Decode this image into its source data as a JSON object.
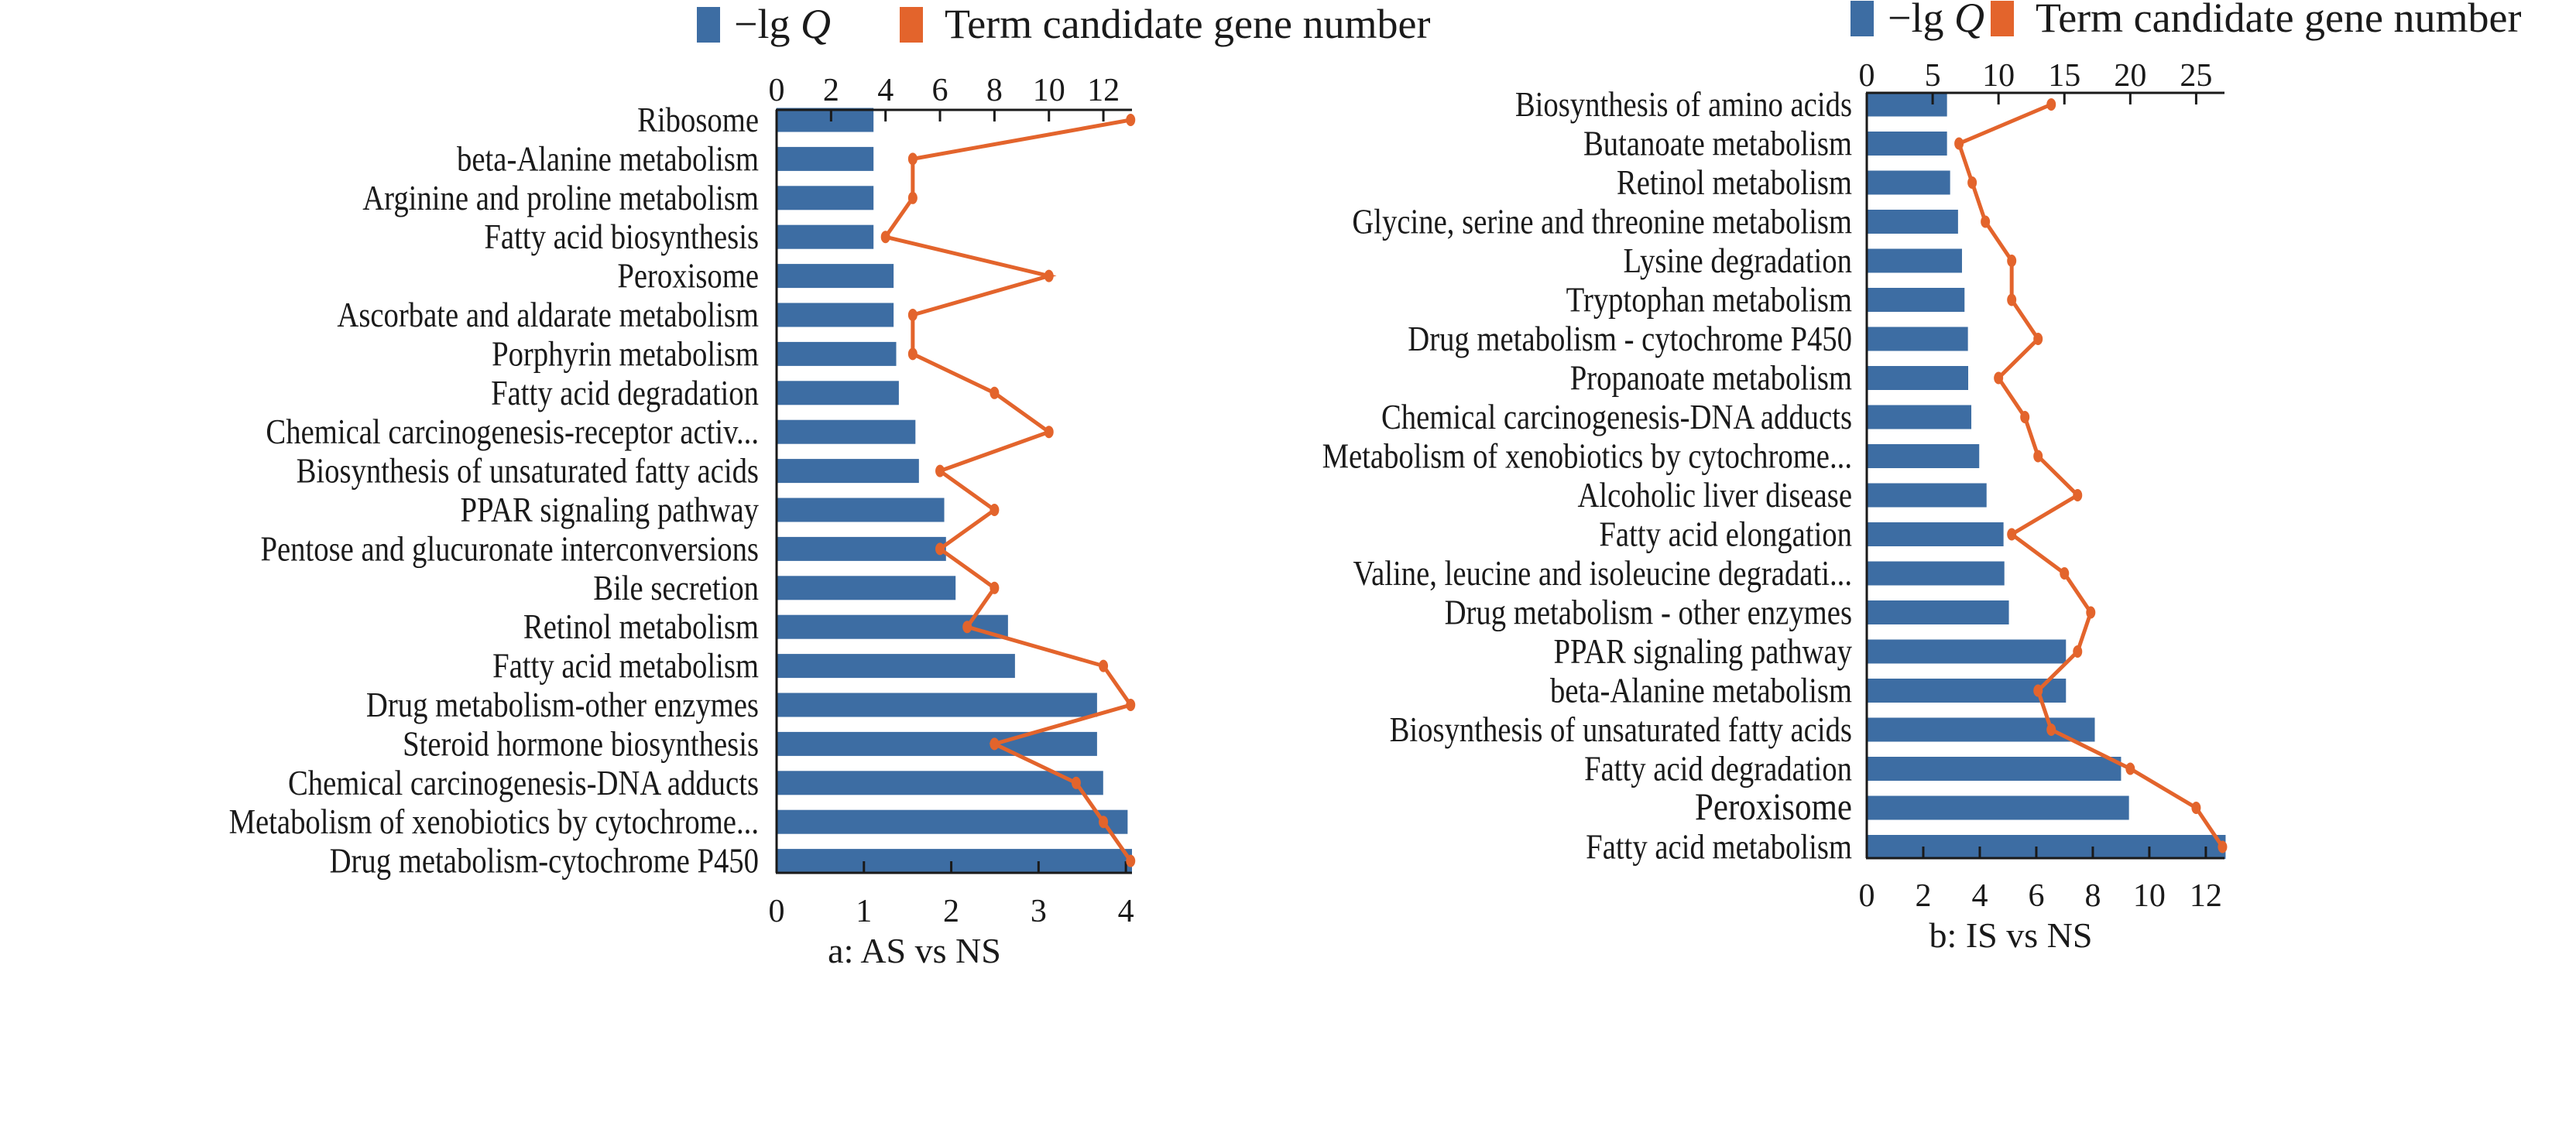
{
  "colors": {
    "bar": "#3d6da3",
    "line": "#e3642c",
    "axis": "#1a1a1a"
  },
  "chart_data": [
    {
      "type": "bar+line",
      "caption": "a: AS vs NS",
      "legend": [
        {
          "label_prefix": "−lg",
          "label_italic": "Q",
          "series": "bar"
        },
        {
          "label": "Term candidate gene number",
          "series": "line"
        }
      ],
      "bottom_axis": {
        "label": "−lg Q",
        "range": [
          0,
          4.07
        ],
        "ticks": [
          0,
          1,
          2,
          3,
          4
        ]
      },
      "top_axis": {
        "label": "Term candidate gene number",
        "range": [
          0,
          13.05
        ],
        "ticks": [
          0,
          2,
          4,
          6,
          8,
          10,
          12
        ]
      },
      "categories": [
        "Ribosome",
        "beta-Alanine metabolism",
        "Arginine and proline metabolism",
        "Fatty acid biosynthesis",
        "Peroxisome",
        "Ascorbate and aldarate metabolism",
        "Porphyrin metabolism",
        "Fatty acid degradation",
        "Chemical carcinogenesis-receptor activ...",
        "Biosynthesis of unsaturated fatty acids",
        "PPAR signaling pathway",
        "Pentose and glucuronate interconversions",
        "Bile secretion",
        "Retinol metabolism",
        "Fatty acid metabolism",
        "Drug metabolism-other enzymes",
        "Steroid hormone biosynthesis",
        "Chemical carcinogenesis-DNA adducts",
        "Metabolism of xenobiotics by cytochrome...",
        "Drug metabolism-cytochrome P450"
      ],
      "series": [
        {
          "name": "−lg Q",
          "type": "bar",
          "values": [
            1.11,
            1.11,
            1.11,
            1.11,
            1.34,
            1.34,
            1.37,
            1.4,
            1.59,
            1.63,
            1.92,
            1.94,
            2.05,
            2.65,
            2.73,
            3.67,
            3.67,
            3.74,
            4.02,
            4.07
          ]
        },
        {
          "name": "Term candidate gene number",
          "type": "line",
          "values": [
            13,
            5,
            5,
            4,
            10,
            5,
            5,
            8,
            10,
            6,
            8,
            6,
            8,
            7,
            12,
            13,
            8,
            11,
            12,
            13
          ]
        }
      ]
    },
    {
      "type": "bar+line",
      "caption": "b: IS vs NS",
      "legend": [
        {
          "label_prefix": "−lg",
          "label_italic": "Q",
          "series": "bar"
        },
        {
          "label": "Term candidate gene number",
          "series": "line"
        }
      ],
      "bottom_axis": {
        "label": "−lg Q",
        "range": [
          0,
          12.66
        ],
        "ticks": [
          0,
          2,
          4,
          6,
          8,
          10,
          12
        ]
      },
      "top_axis": {
        "label": "Term candidate gene number",
        "range": [
          0,
          27.15
        ],
        "ticks": [
          0,
          5,
          10,
          15,
          20,
          25
        ]
      },
      "categories": [
        "Biosynthesis of amino acids",
        "Butanoate metabolism",
        "Retinol metabolism",
        "Glycine, serine and threonine metabolism",
        "Lysine degradation",
        "Tryptophan metabolism",
        "Drug metabolism - cytochrome P450",
        "Propanoate metabolism",
        "Chemical carcinogenesis-DNA adducts",
        "Metabolism of xenobiotics by cytochrome...",
        "Alcoholic liver disease",
        "Fatty acid elongation",
        "Valine, leucine and isoleucine degradati...",
        "Drug metabolism - other enzymes",
        "PPAR signaling pathway",
        "beta-Alanine metabolism",
        "Biosynthesis of unsaturated fatty acids",
        "Fatty acid degradation",
        "Peroxisome",
        "Fatty acid metabolism"
      ],
      "series": [
        {
          "name": "−lg Q",
          "type": "bar",
          "values": [
            2.84,
            2.84,
            2.95,
            3.23,
            3.37,
            3.46,
            3.58,
            3.59,
            3.7,
            3.98,
            4.24,
            4.84,
            4.87,
            5.03,
            7.05,
            7.05,
            8.07,
            9.0,
            9.28,
            12.7
          ]
        },
        {
          "name": "Term candidate gene number",
          "type": "line",
          "values": [
            14,
            7,
            8,
            9,
            11,
            11,
            13,
            10,
            12,
            13,
            16,
            11,
            15,
            17,
            16,
            13,
            14,
            20,
            25,
            27
          ]
        }
      ]
    }
  ]
}
